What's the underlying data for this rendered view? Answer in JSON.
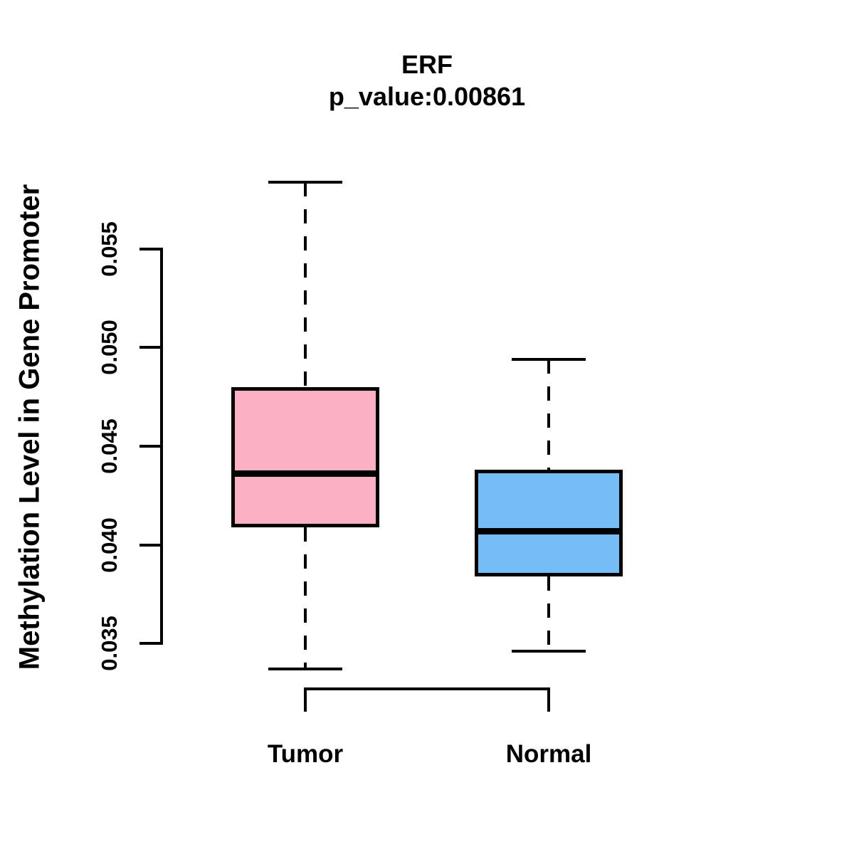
{
  "title": {
    "line1": "ERF",
    "line2": "p_value:0.00861"
  },
  "axes": {
    "y_label": "Methylation Level in Gene Promoter",
    "y_tick_labels": [
      "0.055",
      "0.050",
      "0.045",
      "0.040",
      "0.035"
    ],
    "x_category_labels": [
      "Tumor",
      "Normal"
    ]
  },
  "colors": {
    "tumor_fill": "#FCB0C4",
    "normal_fill": "#74BEF5",
    "stroke": "#000000",
    "background": "#FFFFFF"
  },
  "chart_data": {
    "type": "boxplot",
    "title": "ERF",
    "subtitle": "p_value:0.00861",
    "gene": "ERF",
    "p_value": 0.00861,
    "ylabel": "Methylation Level in Gene Promoter",
    "xlabel": "",
    "categories": [
      "Tumor",
      "Normal"
    ],
    "y_ticks": [
      0.055,
      0.05,
      0.045,
      0.04,
      0.035
    ],
    "y_axis_tick_range": [
      0.035,
      0.055
    ],
    "grid": false,
    "legend": "none",
    "series": [
      {
        "name": "Tumor",
        "box_color": "#FCB0C4",
        "whisker_low": 0.0337,
        "q1": 0.0409,
        "median": 0.0436,
        "q3": 0.048,
        "whisker_high": 0.0584
      },
      {
        "name": "Normal",
        "box_color": "#74BEF5",
        "whisker_low": 0.0346,
        "q1": 0.0384,
        "median": 0.0407,
        "q3": 0.0438,
        "whisker_high": 0.0494
      }
    ]
  }
}
